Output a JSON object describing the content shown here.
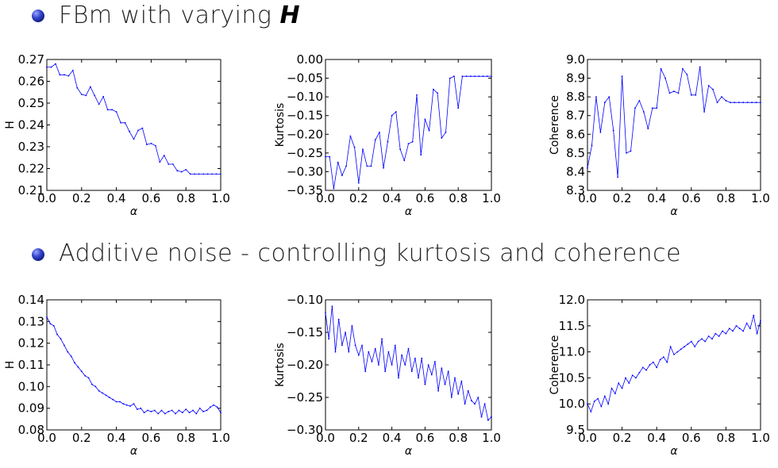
{
  "headings": {
    "fbm": {
      "text": "FBm with varying ",
      "italic": "H"
    },
    "noise": {
      "text": "Additive noise - controlling kurtosis and coherence"
    }
  },
  "chart_data": [
    {
      "type": "line",
      "xlabel": "α",
      "ylabel": "H",
      "xlim": [
        0,
        1
      ],
      "ylim": [
        0.21,
        0.27
      ],
      "xticks": [
        "0.0",
        "0.2",
        "0.4",
        "0.6",
        "0.8",
        "1.0"
      ],
      "yticks": [
        "0.21",
        "0.22",
        "0.23",
        "0.24",
        "0.25",
        "0.26",
        "0.27"
      ],
      "x": [
        0.0,
        0.025,
        0.05,
        0.075,
        0.1,
        0.125,
        0.15,
        0.175,
        0.2,
        0.225,
        0.25,
        0.275,
        0.3,
        0.325,
        0.35,
        0.375,
        0.4,
        0.425,
        0.45,
        0.475,
        0.5,
        0.525,
        0.55,
        0.575,
        0.6,
        0.625,
        0.65,
        0.675,
        0.7,
        0.725,
        0.75,
        0.775,
        0.8,
        0.825,
        0.85,
        0.875,
        0.9,
        0.925,
        0.95,
        0.975,
        1.0
      ],
      "y": [
        0.2665,
        0.2665,
        0.268,
        0.263,
        0.263,
        0.2625,
        0.265,
        0.257,
        0.254,
        0.2535,
        0.2575,
        0.2535,
        0.2495,
        0.253,
        0.247,
        0.247,
        0.246,
        0.241,
        0.241,
        0.237,
        0.2335,
        0.2375,
        0.2385,
        0.231,
        0.2315,
        0.2305,
        0.223,
        0.226,
        0.222,
        0.222,
        0.219,
        0.2185,
        0.2195,
        0.2175,
        0.2175,
        0.2175,
        0.2175,
        0.2175,
        0.2175,
        0.2175,
        0.2175
      ],
      "color": "#0000ff"
    },
    {
      "type": "line",
      "xlabel": "α",
      "ylabel": "Kurtosis",
      "xlim": [
        0,
        1
      ],
      "ylim": [
        -0.35,
        0.0
      ],
      "xticks": [
        "0.0",
        "0.2",
        "0.4",
        "0.6",
        "0.8",
        "1.0"
      ],
      "yticks": [
        "−0.35",
        "−0.30",
        "−0.25",
        "−0.20",
        "−0.15",
        "−0.10",
        "−0.05",
        "0.00"
      ],
      "x": [
        0.0,
        0.025,
        0.05,
        0.075,
        0.1,
        0.125,
        0.15,
        0.175,
        0.2,
        0.225,
        0.25,
        0.275,
        0.3,
        0.325,
        0.35,
        0.375,
        0.4,
        0.425,
        0.45,
        0.475,
        0.5,
        0.525,
        0.55,
        0.575,
        0.6,
        0.625,
        0.65,
        0.675,
        0.7,
        0.725,
        0.75,
        0.775,
        0.8,
        0.825,
        0.85,
        0.875,
        0.9,
        0.925,
        0.95,
        0.975,
        1.0
      ],
      "y": [
        -0.26,
        -0.26,
        -0.345,
        -0.275,
        -0.31,
        -0.285,
        -0.205,
        -0.235,
        -0.33,
        -0.24,
        -0.285,
        -0.285,
        -0.215,
        -0.195,
        -0.29,
        -0.22,
        -0.15,
        -0.14,
        -0.24,
        -0.27,
        -0.225,
        -0.22,
        -0.095,
        -0.255,
        -0.16,
        -0.19,
        -0.08,
        -0.09,
        -0.21,
        -0.195,
        -0.05,
        -0.045,
        -0.13,
        -0.045,
        -0.045,
        -0.045,
        -0.045,
        -0.045,
        -0.045,
        -0.045,
        -0.045
      ],
      "color": "#0000ff"
    },
    {
      "type": "line",
      "xlabel": "α",
      "ylabel": "Coherence",
      "xlim": [
        0,
        1
      ],
      "ylim": [
        8.3,
        9.0
      ],
      "xticks": [
        "0.0",
        "0.2",
        "0.4",
        "0.6",
        "0.8",
        "1.0"
      ],
      "yticks": [
        "8.3",
        "8.4",
        "8.5",
        "8.6",
        "8.7",
        "8.8",
        "8.9",
        "9.0"
      ],
      "x": [
        0.0,
        0.025,
        0.05,
        0.075,
        0.1,
        0.125,
        0.15,
        0.175,
        0.2,
        0.225,
        0.25,
        0.275,
        0.3,
        0.325,
        0.35,
        0.375,
        0.4,
        0.425,
        0.45,
        0.475,
        0.5,
        0.525,
        0.55,
        0.575,
        0.6,
        0.625,
        0.65,
        0.675,
        0.7,
        0.725,
        0.75,
        0.775,
        0.8,
        0.825,
        0.85,
        0.875,
        0.9,
        0.925,
        0.95,
        0.975,
        1.0
      ],
      "y": [
        8.42,
        8.54,
        8.8,
        8.61,
        8.77,
        8.8,
        8.62,
        8.37,
        8.91,
        8.5,
        8.51,
        8.74,
        8.78,
        8.72,
        8.63,
        8.74,
        8.74,
        8.95,
        8.9,
        8.82,
        8.83,
        8.82,
        8.95,
        8.92,
        8.81,
        8.81,
        8.96,
        8.72,
        8.86,
        8.84,
        8.77,
        8.8,
        8.78,
        8.77,
        8.77,
        8.77,
        8.77,
        8.77,
        8.77,
        8.77,
        8.77
      ],
      "color": "#0000ff"
    },
    {
      "type": "line",
      "xlabel": "α",
      "ylabel": "H",
      "xlim": [
        0,
        1
      ],
      "ylim": [
        0.08,
        0.14
      ],
      "xticks": [
        "0.0",
        "0.2",
        "0.4",
        "0.6",
        "0.8",
        "1.0"
      ],
      "yticks": [
        "0.08",
        "0.09",
        "0.10",
        "0.11",
        "0.12",
        "0.13",
        "0.14"
      ],
      "x": [
        0.0,
        0.02,
        0.04,
        0.06,
        0.08,
        0.1,
        0.12,
        0.14,
        0.16,
        0.18,
        0.2,
        0.22,
        0.24,
        0.26,
        0.28,
        0.3,
        0.32,
        0.34,
        0.36,
        0.38,
        0.4,
        0.42,
        0.44,
        0.46,
        0.48,
        0.5,
        0.52,
        0.54,
        0.56,
        0.58,
        0.6,
        0.62,
        0.64,
        0.66,
        0.68,
        0.7,
        0.72,
        0.74,
        0.76,
        0.78,
        0.8,
        0.82,
        0.84,
        0.86,
        0.88,
        0.9,
        0.92,
        0.94,
        0.96,
        0.98,
        1.0
      ],
      "y": [
        0.132,
        0.129,
        0.128,
        0.124,
        0.122,
        0.119,
        0.116,
        0.114,
        0.111,
        0.109,
        0.107,
        0.105,
        0.104,
        0.101,
        0.1,
        0.098,
        0.097,
        0.096,
        0.095,
        0.094,
        0.093,
        0.093,
        0.092,
        0.0915,
        0.091,
        0.092,
        0.0895,
        0.09,
        0.088,
        0.089,
        0.0885,
        0.089,
        0.0875,
        0.089,
        0.0875,
        0.0885,
        0.089,
        0.0875,
        0.089,
        0.088,
        0.0895,
        0.088,
        0.089,
        0.0875,
        0.09,
        0.0885,
        0.089,
        0.0905,
        0.0915,
        0.0905,
        0.088
      ],
      "color": "#0000ff"
    },
    {
      "type": "line",
      "xlabel": "α",
      "ylabel": "Kurtosis",
      "xlim": [
        0,
        1
      ],
      "ylim": [
        -0.3,
        -0.1
      ],
      "xticks": [
        "0.0",
        "0.2",
        "0.4",
        "0.6",
        "0.8",
        "1.0"
      ],
      "yticks": [
        "−0.30",
        "−0.25",
        "−0.20",
        "−0.15",
        "−0.10"
      ],
      "x": [
        0.0,
        0.02,
        0.04,
        0.06,
        0.08,
        0.1,
        0.12,
        0.14,
        0.16,
        0.18,
        0.2,
        0.22,
        0.24,
        0.26,
        0.28,
        0.3,
        0.32,
        0.34,
        0.36,
        0.38,
        0.4,
        0.42,
        0.44,
        0.46,
        0.48,
        0.5,
        0.52,
        0.54,
        0.56,
        0.58,
        0.6,
        0.62,
        0.64,
        0.66,
        0.68,
        0.7,
        0.72,
        0.74,
        0.76,
        0.78,
        0.8,
        0.82,
        0.84,
        0.86,
        0.88,
        0.9,
        0.92,
        0.94,
        0.96,
        0.98,
        1.0
      ],
      "y": [
        -0.12,
        -0.16,
        -0.11,
        -0.18,
        -0.13,
        -0.17,
        -0.15,
        -0.18,
        -0.14,
        -0.17,
        -0.185,
        -0.17,
        -0.21,
        -0.18,
        -0.195,
        -0.175,
        -0.2,
        -0.16,
        -0.21,
        -0.18,
        -0.2,
        -0.17,
        -0.22,
        -0.185,
        -0.2,
        -0.175,
        -0.21,
        -0.19,
        -0.22,
        -0.19,
        -0.23,
        -0.2,
        -0.215,
        -0.195,
        -0.24,
        -0.205,
        -0.23,
        -0.21,
        -0.25,
        -0.22,
        -0.245,
        -0.225,
        -0.26,
        -0.24,
        -0.255,
        -0.26,
        -0.25,
        -0.28,
        -0.26,
        -0.285,
        -0.28
      ],
      "color": "#0000ff"
    },
    {
      "type": "line",
      "xlabel": "α",
      "ylabel": "Coherence",
      "xlim": [
        0,
        1
      ],
      "ylim": [
        9.5,
        12.0
      ],
      "xticks": [
        "0.0",
        "0.2",
        "0.4",
        "0.6",
        "0.8",
        "1.0"
      ],
      "yticks": [
        "9.5",
        "10.0",
        "10.5",
        "11.0",
        "11.5",
        "12.0"
      ],
      "x": [
        0.0,
        0.02,
        0.04,
        0.06,
        0.08,
        0.1,
        0.12,
        0.14,
        0.16,
        0.18,
        0.2,
        0.22,
        0.24,
        0.26,
        0.28,
        0.3,
        0.32,
        0.34,
        0.36,
        0.38,
        0.4,
        0.42,
        0.44,
        0.46,
        0.48,
        0.5,
        0.52,
        0.54,
        0.56,
        0.58,
        0.6,
        0.62,
        0.64,
        0.66,
        0.68,
        0.7,
        0.72,
        0.74,
        0.76,
        0.78,
        0.8,
        0.82,
        0.84,
        0.86,
        0.88,
        0.9,
        0.92,
        0.94,
        0.96,
        0.98,
        1.0
      ],
      "y": [
        10.0,
        9.85,
        10.05,
        10.1,
        9.95,
        10.15,
        10.0,
        10.3,
        10.2,
        10.4,
        10.3,
        10.5,
        10.4,
        10.55,
        10.5,
        10.6,
        10.7,
        10.65,
        10.75,
        10.8,
        10.7,
        10.85,
        10.9,
        10.8,
        11.1,
        10.95,
        11.0,
        11.05,
        11.1,
        11.15,
        11.2,
        11.1,
        11.2,
        11.25,
        11.2,
        11.3,
        11.25,
        11.35,
        11.3,
        11.4,
        11.35,
        11.45,
        11.4,
        11.5,
        11.45,
        11.4,
        11.55,
        11.45,
        11.7,
        11.35,
        11.6
      ],
      "color": "#0000ff"
    }
  ]
}
